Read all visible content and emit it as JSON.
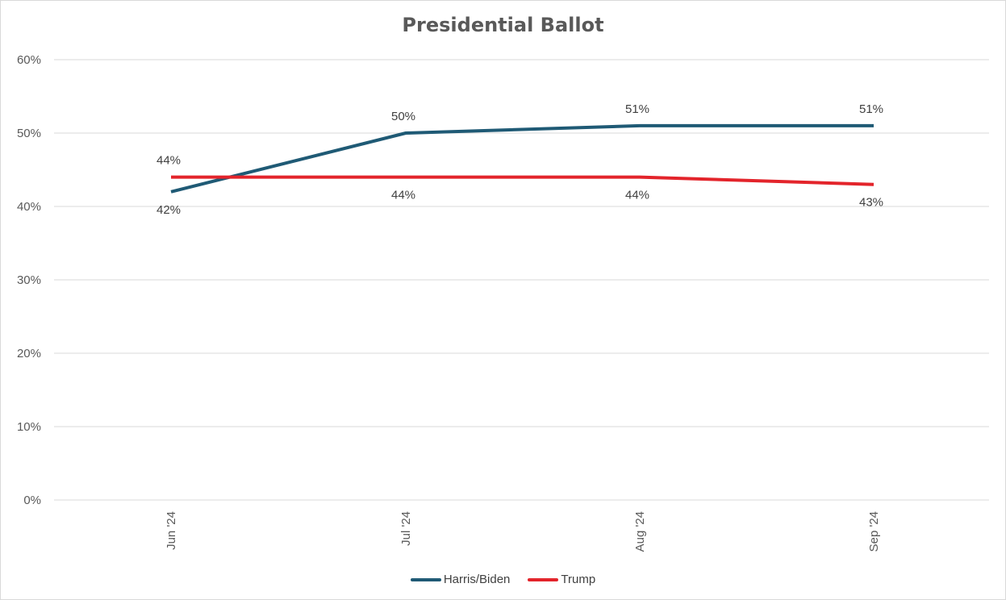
{
  "chart_data": {
    "type": "line",
    "title": "Presidential Ballot",
    "categories": [
      "Jun '24",
      "Jul '24",
      "Aug '24",
      "Sep '24"
    ],
    "series": [
      {
        "name": "Harris/Biden",
        "values": [
          42,
          50,
          51,
          51
        ],
        "labels": [
          "42%",
          "50%",
          "51%",
          "51%"
        ],
        "color": "#1f5a75"
      },
      {
        "name": "Trump",
        "values": [
          44,
          44,
          44,
          43
        ],
        "labels": [
          "44%",
          "44%",
          "44%",
          "43%"
        ],
        "color": "#e3242b"
      }
    ],
    "ylim": [
      0,
      60
    ],
    "yticks": [
      0,
      10,
      20,
      30,
      40,
      50,
      60
    ],
    "ytick_labels": [
      "0%",
      "10%",
      "20%",
      "30%",
      "40%",
      "50%",
      "60%"
    ],
    "grid": true,
    "legend": "bottom",
    "xlabel": "",
    "ylabel": ""
  }
}
